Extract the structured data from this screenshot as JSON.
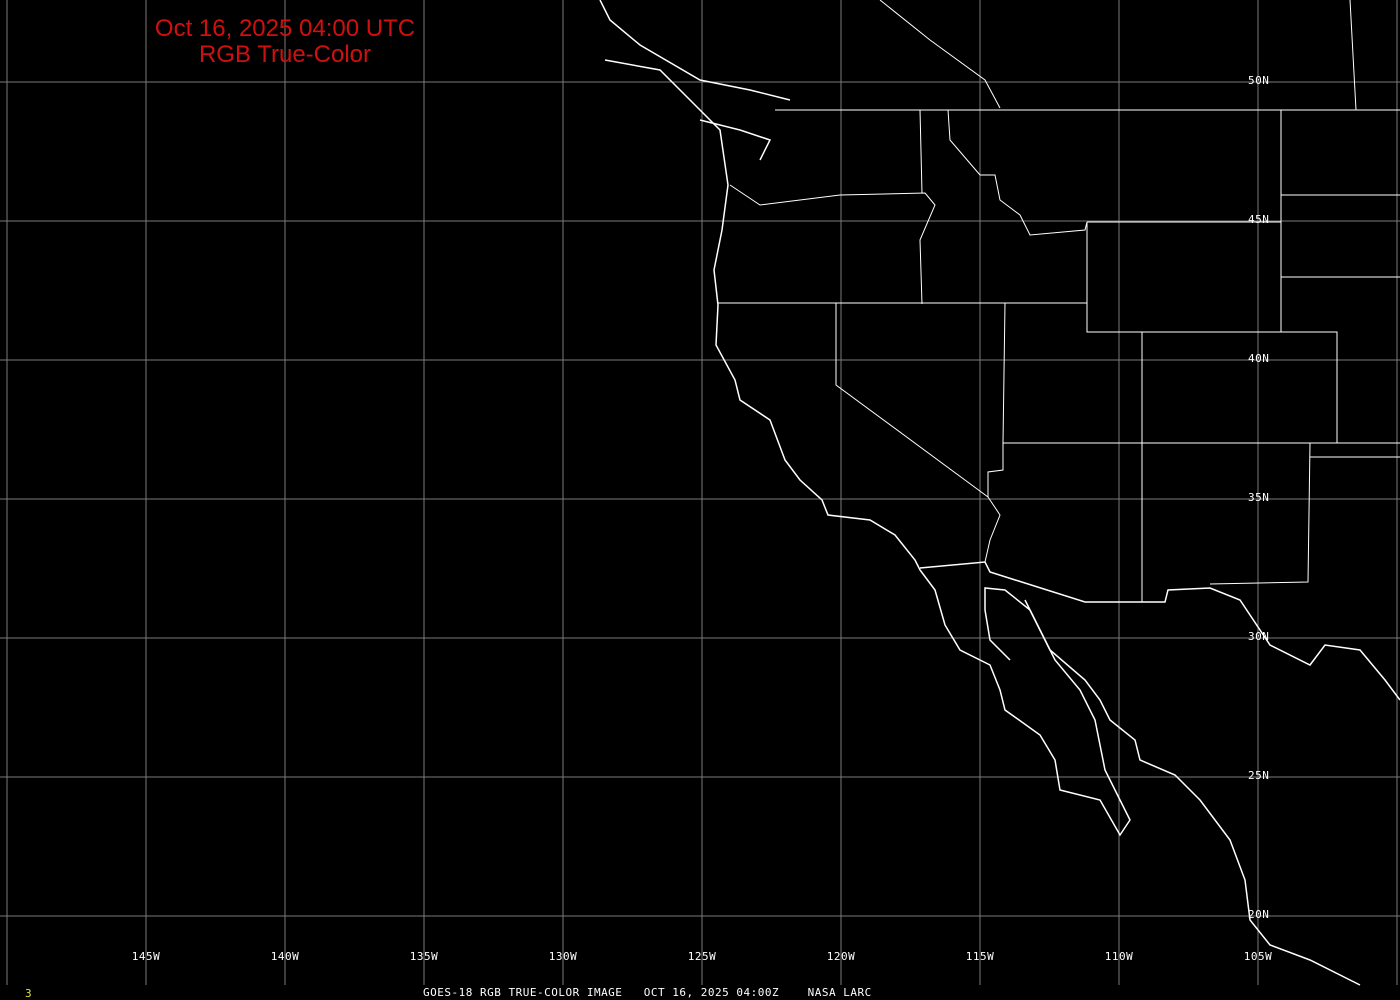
{
  "header": {
    "datetime": "Oct 16, 2025 04:00 UTC",
    "product": "RGB True-Color"
  },
  "footer": {
    "frame": "3",
    "caption": "GOES-18 RGB TRUE-COLOR IMAGE   OCT 16, 2025 04:00Z    NASA LARC"
  },
  "lon_labels": [
    "145W",
    "140W",
    "135W",
    "130W",
    "125W",
    "120W",
    "115W",
    "110W",
    "105W"
  ],
  "lat_labels": [
    "50N",
    "45N",
    "40N",
    "35N",
    "30N",
    "25N",
    "20N"
  ],
  "colors": {
    "title": "#d01010",
    "frame": "#e0e040",
    "grid": "#808080",
    "coast": "#ffffff"
  }
}
